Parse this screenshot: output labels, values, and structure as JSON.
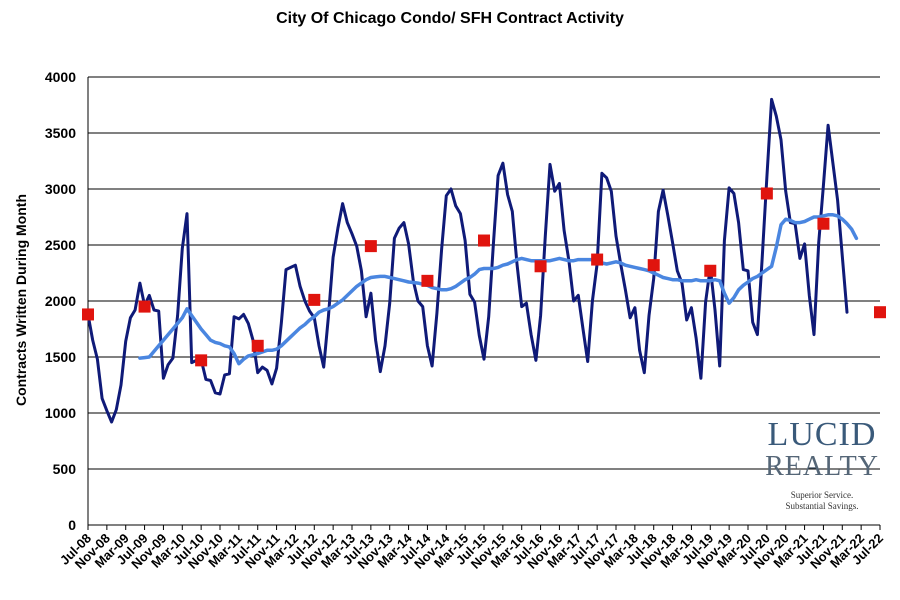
{
  "chart_data": {
    "type": "line",
    "title": "City Of Chicago Condo/ SFH Contract Activity",
    "ylabel": "Contracts Written During Month",
    "xlabel": "",
    "ylim": [
      0,
      4000
    ],
    "yticks": [
      0,
      500,
      1000,
      1500,
      2000,
      2500,
      3000,
      3500,
      4000
    ],
    "grid": "horizontal",
    "legend": "none",
    "xtick_labels": [
      "Jul-08",
      "Nov-08",
      "Mar-09",
      "Jul-09",
      "Nov-09",
      "Mar-10",
      "Jul-10",
      "Nov-10",
      "Mar-11",
      "Jul-11",
      "Nov-11",
      "Mar-12",
      "Jul-12",
      "Nov-12",
      "Mar-13",
      "Jul-13",
      "Nov-13",
      "Mar-14",
      "Jul-14",
      "Nov-14",
      "Mar-15",
      "Jul-15",
      "Nov-15",
      "Mar-16",
      "Jul-16",
      "Nov-16",
      "Mar-17",
      "Jul-17",
      "Nov-17",
      "Mar-18",
      "Jul-18",
      "Nov-18",
      "Mar-19",
      "Jul-19",
      "Nov-19",
      "Mar-20",
      "Jul-20",
      "Nov-20",
      "Mar-21",
      "Jul-21",
      "Nov-21",
      "Mar-22",
      "Jul-22"
    ],
    "series": [
      {
        "kind": "monthly",
        "color": "#0f1a78",
        "start": "Jul-08",
        "values": [
          1880,
          1650,
          1480,
          1130,
          1020,
          920,
          1030,
          1250,
          1640,
          1850,
          1920,
          2160,
          1960,
          2050,
          1920,
          1910,
          1310,
          1430,
          1490,
          1870,
          2470,
          2780,
          1450,
          1470,
          1480,
          1300,
          1290,
          1180,
          1170,
          1340,
          1350,
          1860,
          1840,
          1880,
          1800,
          1650,
          1360,
          1410,
          1380,
          1260,
          1400,
          1800,
          2280,
          2300,
          2320,
          2130,
          2000,
          1910,
          1850,
          1600,
          1410,
          1860,
          2390,
          2650,
          2870,
          2700,
          2600,
          2490,
          2270,
          1860,
          2070,
          1650,
          1370,
          1600,
          1980,
          2560,
          2650,
          2700,
          2510,
          2180,
          2000,
          1950,
          1600,
          1420,
          1890,
          2460,
          2940,
          3000,
          2850,
          2780,
          2540,
          2060,
          1990,
          1690,
          1480,
          1860,
          2510,
          3120,
          3230,
          2950,
          2800,
          2330,
          1950,
          1980,
          1700,
          1470,
          1870,
          2580,
          3220,
          2980,
          3050,
          2630,
          2360,
          2000,
          2050,
          1750,
          1460,
          2000,
          2330,
          3140,
          3100,
          2980,
          2580,
          2330,
          2100,
          1850,
          1940,
          1560,
          1360,
          1870,
          2200,
          2800,
          2990,
          2760,
          2520,
          2270,
          2160,
          1830,
          1940,
          1670,
          1310,
          1990,
          2300,
          1920,
          1420,
          2540,
          3010,
          2960,
          2700,
          2280,
          2270,
          1810,
          1700,
          2370,
          3110,
          3800,
          3650,
          3440,
          2980,
          2700,
          2690,
          2380,
          2510,
          2050,
          1700,
          2520,
          3030,
          3570,
          3230,
          2900,
          2400,
          1900
        ]
      },
      {
        "kind": "moving-average",
        "color": "#4a86e0",
        "start": "Jun-09",
        "values": [
          1490,
          1495,
          1500,
          1550,
          1600,
          1650,
          1700,
          1750,
          1800,
          1850,
          1930,
          1870,
          1810,
          1750,
          1700,
          1650,
          1630,
          1620,
          1600,
          1590,
          1530,
          1440,
          1480,
          1510,
          1520,
          1530,
          1545,
          1560,
          1560,
          1570,
          1600,
          1640,
          1680,
          1720,
          1760,
          1790,
          1830,
          1860,
          1900,
          1920,
          1930,
          1950,
          1980,
          2010,
          2050,
          2090,
          2130,
          2160,
          2190,
          2210,
          2215,
          2220,
          2220,
          2210,
          2200,
          2190,
          2180,
          2170,
          2165,
          2160,
          2150,
          2140,
          2120,
          2110,
          2100,
          2100,
          2110,
          2130,
          2160,
          2190,
          2210,
          2240,
          2280,
          2290,
          2290,
          2290,
          2300,
          2320,
          2330,
          2350,
          2370,
          2380,
          2370,
          2360,
          2360,
          2360,
          2360,
          2360,
          2370,
          2380,
          2370,
          2360,
          2360,
          2370,
          2370,
          2370,
          2370,
          2360,
          2340,
          2330,
          2340,
          2350,
          2340,
          2320,
          2310,
          2300,
          2290,
          2280,
          2270,
          2250,
          2230,
          2210,
          2200,
          2190,
          2190,
          2180,
          2180,
          2180,
          2190,
          2180,
          2180,
          2180,
          2190,
          2180,
          2070,
          1980,
          2030,
          2100,
          2140,
          2170,
          2200,
          2220,
          2250,
          2280,
          2310,
          2480,
          2680,
          2730,
          2720,
          2700,
          2700,
          2710,
          2730,
          2750,
          2750,
          2760,
          2770,
          2770,
          2760,
          2730,
          2690,
          2640,
          2560
        ]
      },
      {
        "kind": "july-markers",
        "color": "#e0140e",
        "labels": [
          "Jul-08",
          "Jul-09",
          "Jul-10",
          "Jul-11",
          "Jul-12",
          "Jul-13",
          "Jul-14",
          "Jul-15",
          "Jul-16",
          "Jul-17",
          "Jul-18",
          "Jul-19",
          "Jul-20",
          "Jul-21",
          "Jul-22"
        ],
        "values": [
          1880,
          1950,
          1470,
          1600,
          2010,
          2490,
          2180,
          2540,
          2310,
          2370,
          2320,
          2270,
          2960,
          2690,
          1900
        ]
      }
    ]
  },
  "logo": {
    "name_line1": "LUCID",
    "name_line2": "REALTY",
    "tagline1": "Superior Service.",
    "tagline2": "Substantial Savings."
  }
}
